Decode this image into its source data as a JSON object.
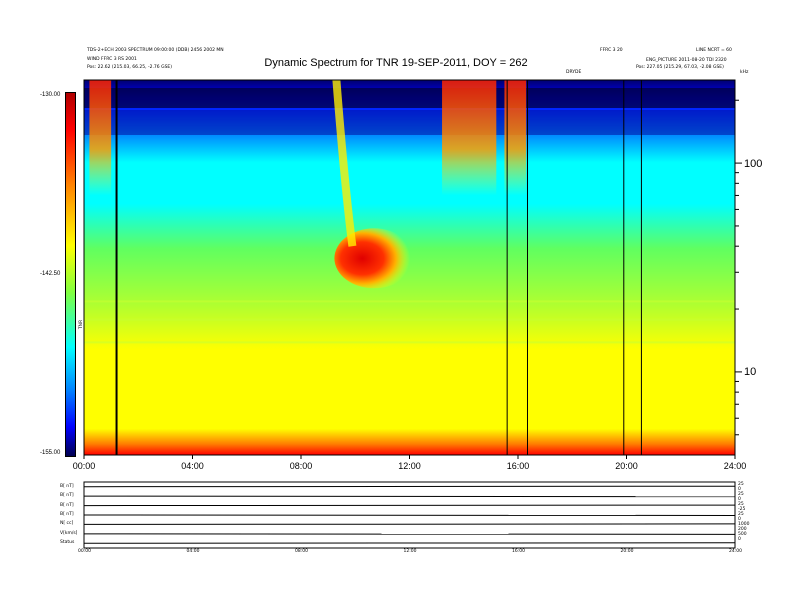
{
  "chart_data": {
    "type": "heatmap",
    "title": "Dynamic Spectrum for TNR 19-SEP-2011, DOY = 262",
    "header_left": [
      "TDS-2+ECH 2003 SPECTRUM 09:00:00 (DDB) 2456 2002 MN",
      "WIND FFRC 3 RS 2001",
      "Pos:    22.62 (215.03, 66.25, -2.76 GSE)"
    ],
    "header_right": [
      "FFRC 3 20",
      "LINE NCRT = 60",
      "ENG_PICTURE 2011-08-20 TDI 2320",
      "Pos:    227.05 (215.29, 67.03, -2.08 GSE)"
    ],
    "header_center_small": "DRYDE",
    "header_corner": "kHz",
    "x_ticks": [
      "00:00",
      "04:00",
      "08:00",
      "12:00",
      "16:00",
      "20:00",
      "24:00"
    ],
    "x_range_hours": [
      0,
      24
    ],
    "y_right_ticks": [
      "100",
      "10"
    ],
    "y_right_values": [
      100,
      10
    ],
    "y_range_khz": [
      4,
      250
    ],
    "y_scale": "log",
    "colorbar": {
      "labels": [
        "-130.00",
        "-142.50",
        "-155.00"
      ],
      "values": [
        -130.0,
        -142.5,
        -155.0
      ],
      "unit": "TNR",
      "colors": [
        "#c00000",
        "#ff0000",
        "#ff8000",
        "#ffff00",
        "#80ff40",
        "#00ffff",
        "#0080ff",
        "#0000ff",
        "#000060"
      ]
    },
    "features": [
      {
        "name": "type-III-burst",
        "start_hour": 0.2,
        "end_hour": 1.0,
        "value_dB": -131
      },
      {
        "name": "type-II-burst",
        "start_hour": 9.6,
        "end_hour": 11.8,
        "value_dB": -131
      },
      {
        "name": "burst-cluster",
        "start_hour": 13.2,
        "end_hour": 15.2,
        "value_dB": -131
      },
      {
        "name": "burst",
        "start_hour": 15.5,
        "end_hour": 16.3,
        "value_dB": -134
      }
    ],
    "vertical_lines_hours": [
      1.2,
      15.6,
      16.35,
      19.9,
      20.55
    ],
    "bottom_panels": {
      "left_labels": [
        "B[ nT]",
        "B[ nT]",
        "B[ nT]",
        "B[ nT]",
        "N[ cc]",
        "V[km/s]",
        "Status"
      ],
      "right_labels": [
        "25",
        "0",
        "25",
        "0",
        "25",
        "-25",
        "25",
        "0",
        "1000",
        "200",
        "500",
        "0",
        ""
      ],
      "x_ticks": [
        "00:00",
        "04:00",
        "08:00",
        "12:00",
        "16:00",
        "20:00",
        "24:00"
      ]
    }
  }
}
